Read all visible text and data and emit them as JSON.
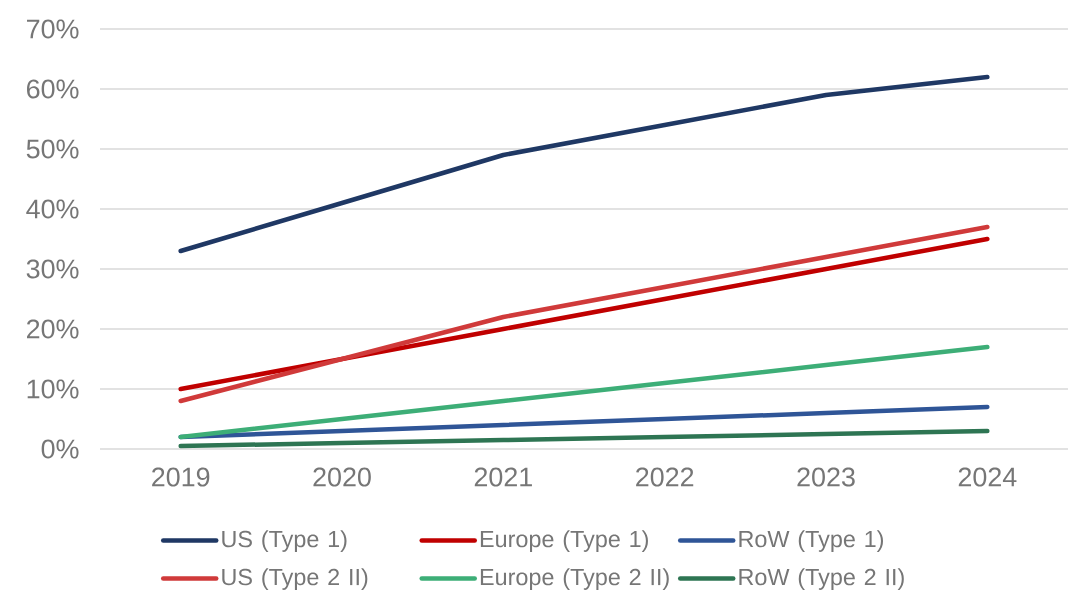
{
  "chart_data": {
    "type": "line",
    "categories": [
      "2019",
      "2020",
      "2021",
      "2022",
      "2023",
      "2024"
    ],
    "series": [
      {
        "name": "US (Type 1)",
        "color": "#1f3864",
        "values": [
          33,
          41,
          49,
          54,
          59,
          62
        ]
      },
      {
        "name": "Europe (Type 1)",
        "color": "#c00000",
        "values": [
          10,
          15,
          20,
          25,
          30,
          35
        ]
      },
      {
        "name": "RoW (Type 1)",
        "color": "#2f5597",
        "values": [
          2,
          3,
          4,
          5,
          6,
          7
        ]
      },
      {
        "name": "US (Type 2 II)",
        "color": "#d03a3a",
        "values": [
          8,
          15,
          22,
          27,
          32,
          37
        ]
      },
      {
        "name": "Europe (Type 2 II)",
        "color": "#3dae77",
        "values": [
          2,
          5,
          8,
          11,
          14,
          17
        ]
      },
      {
        "name": "RoW (Type 2 II)",
        "color": "#2e7553",
        "values": [
          0.5,
          1,
          1.5,
          2,
          2.5,
          3
        ]
      }
    ],
    "ylim": [
      0,
      70
    ],
    "yticks": [
      {
        "value": 0,
        "label": "0%"
      },
      {
        "value": 10,
        "label": "10%"
      },
      {
        "value": 20,
        "label": "20%"
      },
      {
        "value": 30,
        "label": "30%"
      },
      {
        "value": 40,
        "label": "40%"
      },
      {
        "value": 50,
        "label": "50%"
      },
      {
        "value": 60,
        "label": "60%"
      },
      {
        "value": 70,
        "label": "70%"
      }
    ],
    "grid": "y",
    "legend": "bottom",
    "line_style": "solid"
  }
}
